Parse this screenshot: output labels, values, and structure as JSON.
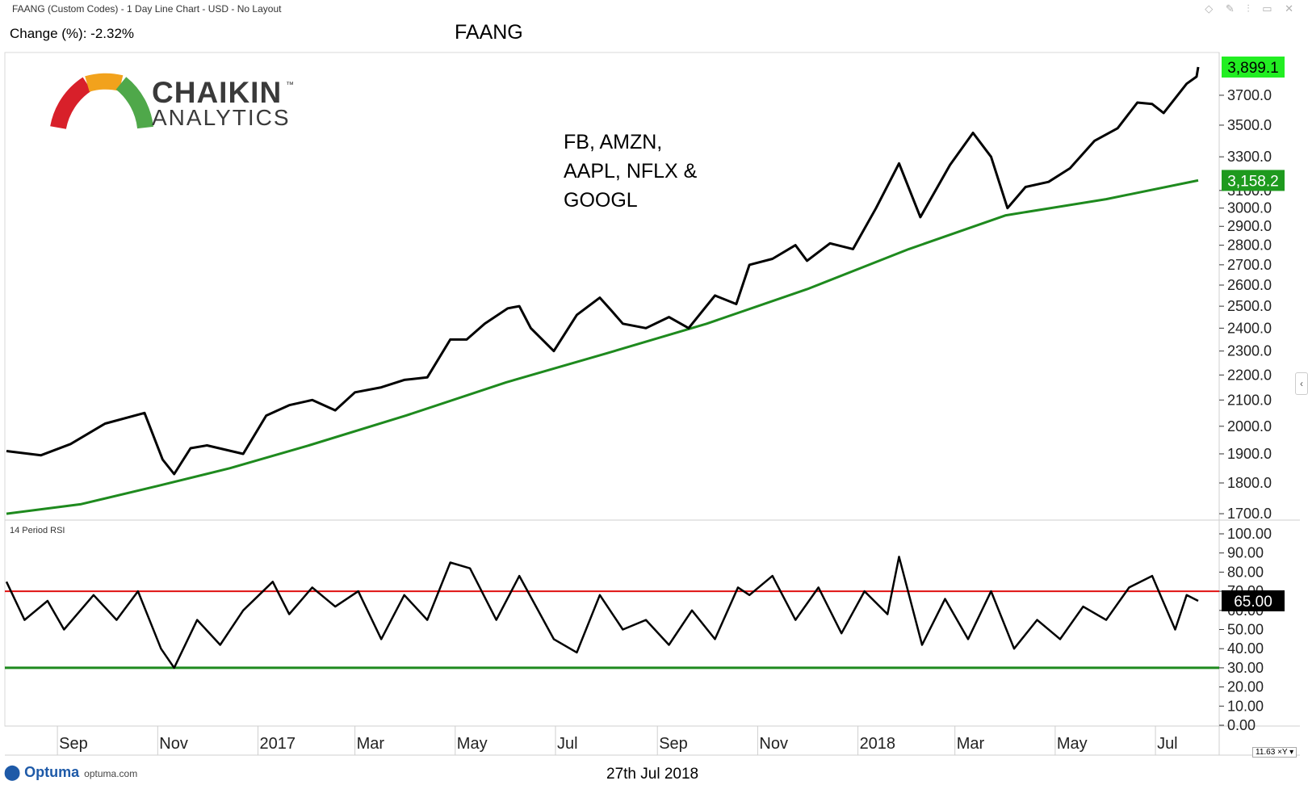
{
  "header": {
    "description": "FAANG (Custom Codes) - 1 Day Line Chart - USD - No Layout",
    "change": "Change (%): -2.32%",
    "title": "FAANG"
  },
  "logo": {
    "line1": "CHAIKIN",
    "tm": "™",
    "line2": "ANALYTICS"
  },
  "annotation": {
    "lines": [
      "FB, AMZN,",
      "AAPL, NFLX &",
      "GOOGL"
    ]
  },
  "footer": {
    "date": "27th Jul 2018",
    "brand": "Optuma",
    "url": "optuma.com",
    "zoom": "11.63"
  },
  "colors": {
    "price": "#000000",
    "ma": "#1e8a1e",
    "overbought": "#e01010",
    "oversold": "#1e8a1e",
    "last_price_bg": "#22ee22",
    "ma_label_bg": "#1e9a1e"
  },
  "chart_data": [
    {
      "type": "line",
      "title": "FAANG",
      "x_tick_labels": [
        "Sep",
        "Nov",
        "2017",
        "Mar",
        "May",
        "Jul",
        "Sep",
        "Nov",
        "2018",
        "Mar",
        "May",
        "Jul"
      ],
      "yticks": [
        "1700.0",
        "1800.0",
        "1900.0",
        "2000.0",
        "2100.0",
        "2200.0",
        "2300.0",
        "2400.0",
        "2500.0",
        "2600.0",
        "2700.0",
        "2800.0",
        "2900.0",
        "3000.0",
        "3100.0",
        "3300.0",
        "3500.0",
        "3700.0"
      ],
      "ylim": [
        1690,
        4000
      ],
      "log_scale": true,
      "last_price_label": "3,899.1",
      "ma_label": "3,158.2",
      "series": [
        {
          "name": "",
          "x": [
            "2016-08-01",
            "2016-08-22",
            "2016-09-09",
            "2016-09-30",
            "2016-10-24",
            "2016-11-04",
            "2016-11-11",
            "2016-11-21",
            "2016-12-01",
            "2016-12-23",
            "2017-01-06",
            "2017-01-20",
            "2017-02-03",
            "2017-02-17",
            "2017-03-01",
            "2017-03-17",
            "2017-03-31",
            "2017-04-14",
            "2017-04-28",
            "2017-05-08",
            "2017-05-19",
            "2017-06-02",
            "2017-06-09",
            "2017-06-16",
            "2017-06-30",
            "2017-07-14",
            "2017-07-28",
            "2017-08-04",
            "2017-08-11",
            "2017-08-25",
            "2017-09-08",
            "2017-09-20",
            "2017-10-06",
            "2017-10-19",
            "2017-10-27",
            "2017-11-10",
            "2017-11-24",
            "2017-12-01",
            "2017-12-15",
            "2017-12-29",
            "2018-01-12",
            "2018-01-26",
            "2018-02-08",
            "2018-02-26",
            "2018-03-12",
            "2018-03-23",
            "2018-04-02",
            "2018-04-13",
            "2018-04-27",
            "2018-05-10",
            "2018-05-25",
            "2018-06-08",
            "2018-06-20",
            "2018-06-29",
            "2018-07-06",
            "2018-07-20",
            "2018-07-26",
            "2018-07-27"
          ],
          "values": [
            1910,
            1895,
            1935,
            2010,
            2050,
            1880,
            1830,
            1920,
            1930,
            1900,
            2040,
            2080,
            2100,
            2060,
            2130,
            2150,
            2180,
            2190,
            2350,
            2350,
            2420,
            2490,
            2500,
            2400,
            2300,
            2460,
            2540,
            2480,
            2420,
            2400,
            2450,
            2400,
            2550,
            2510,
            2700,
            2730,
            2800,
            2720,
            2810,
            2780,
            3000,
            3260,
            2950,
            3250,
            3450,
            3300,
            3000,
            3120,
            3150,
            3230,
            3400,
            3480,
            3650,
            3640,
            3580,
            3780,
            3830,
            3899.1
          ]
        },
        {
          "name": "",
          "x": [
            "2016-08-01",
            "2016-09-15",
            "2016-11-01",
            "2016-12-15",
            "2017-02-01",
            "2017-04-01",
            "2017-06-01",
            "2017-08-01",
            "2017-10-01",
            "2017-12-01",
            "2018-02-01",
            "2018-04-01",
            "2018-06-01",
            "2018-07-27"
          ],
          "values": [
            1700,
            1730,
            1790,
            1850,
            1930,
            2040,
            2170,
            2290,
            2420,
            2580,
            2780,
            2960,
            3050,
            3158.2
          ]
        }
      ]
    },
    {
      "type": "line",
      "title": "14 Period RSI",
      "yticks": [
        "0.00",
        "10.00",
        "20.00",
        "30.00",
        "40.00",
        "50.00",
        "60.00",
        "70.00",
        "80.00",
        "90.00",
        "100.00"
      ],
      "ylim": [
        0,
        100
      ],
      "last_value_label": "65.00",
      "reference_lines": [
        70,
        30
      ],
      "series": [
        {
          "name": "14 Period RSI",
          "x": [
            "2016-08-01",
            "2016-08-12",
            "2016-08-26",
            "2016-09-05",
            "2016-09-23",
            "2016-10-07",
            "2016-10-20",
            "2016-11-03",
            "2016-11-11",
            "2016-11-25",
            "2016-12-09",
            "2016-12-23",
            "2017-01-10",
            "2017-01-20",
            "2017-02-03",
            "2017-02-17",
            "2017-03-03",
            "2017-03-17",
            "2017-03-31",
            "2017-04-14",
            "2017-04-28",
            "2017-05-10",
            "2017-05-26",
            "2017-06-09",
            "2017-06-30",
            "2017-07-14",
            "2017-07-28",
            "2017-08-11",
            "2017-08-25",
            "2017-09-08",
            "2017-09-22",
            "2017-10-06",
            "2017-10-20",
            "2017-10-27",
            "2017-11-10",
            "2017-11-24",
            "2017-12-08",
            "2017-12-22",
            "2018-01-05",
            "2018-01-19",
            "2018-01-26",
            "2018-02-09",
            "2018-02-23",
            "2018-03-09",
            "2018-03-23",
            "2018-04-06",
            "2018-04-20",
            "2018-05-04",
            "2018-05-18",
            "2018-06-01",
            "2018-06-15",
            "2018-06-29",
            "2018-07-13",
            "2018-07-20",
            "2018-07-27"
          ],
          "values": [
            75,
            55,
            65,
            50,
            68,
            55,
            70,
            40,
            30,
            55,
            42,
            60,
            75,
            58,
            72,
            62,
            70,
            45,
            68,
            55,
            85,
            82,
            55,
            78,
            45,
            38,
            68,
            50,
            55,
            42,
            60,
            45,
            72,
            68,
            78,
            55,
            72,
            48,
            70,
            58,
            88,
            42,
            66,
            45,
            70,
            40,
            55,
            45,
            62,
            55,
            72,
            78,
            50,
            68,
            65
          ]
        }
      ]
    }
  ]
}
